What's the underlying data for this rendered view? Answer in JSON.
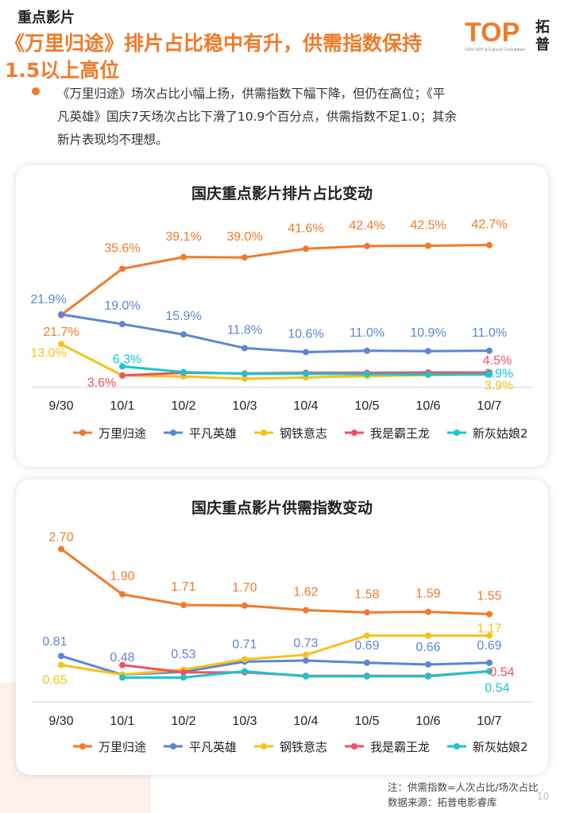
{
  "header": {
    "section": "重点影片",
    "headline": "《万里归途》排片占比稳中有升，供需指数保持1.5以上高位",
    "headline_line1": "《万里归途》排片占比稳中有升，供需指数保持",
    "headline_line2": "1.5以上高位",
    "logo_text": "TOP",
    "logo_cn": [
      "拓",
      "普"
    ],
    "logo_tagline": "CENTURY ● Cultural Consultation",
    "accent_color": "#f07a2a"
  },
  "summary": {
    "text": "《万里归途》场次占比小幅上扬，供需指数下幅下降，但仍在高位；《平凡英雄》国庆7天场次占比下滑了10.9个百分点，供需指数不足1.0；其余新片表现均不理想。",
    "lines": [
      "《万里归途》场次占比小幅上扬，供需指数下幅下降，但仍在高位；《平",
      "凡英雄》国庆7天场次占比下滑了10.9个百分点，供需指数不足1.0；其余",
      "新片表现均不理想。"
    ]
  },
  "chart_data": [
    {
      "type": "line",
      "title": "国庆重点影片排片占比变动",
      "categories": [
        "9/30",
        "10/1",
        "10/2",
        "10/3",
        "10/4",
        "10/5",
        "10/6",
        "10/7"
      ],
      "unit": "%",
      "legend_position": "bottom",
      "series": [
        {
          "name": "万里归途",
          "color": "#f07a2a",
          "values": [
            21.7,
            35.6,
            39.1,
            39.0,
            41.6,
            42.4,
            42.5,
            42.7
          ],
          "labels": [
            "21.7%",
            "35.6%",
            "39.1%",
            "39.0%",
            "41.6%",
            "42.4%",
            "42.5%",
            "42.7%"
          ]
        },
        {
          "name": "平凡英雄",
          "color": "#5b86d6",
          "values": [
            21.9,
            19.0,
            15.9,
            11.8,
            10.6,
            11.0,
            10.9,
            11.0
          ],
          "labels": [
            "21.9%",
            "19.0%",
            "15.9%",
            "11.8%",
            "10.6%",
            "11.0%",
            "10.9%",
            "11.0%"
          ]
        },
        {
          "name": "钢铁意志",
          "color": "#f5c218",
          "values": [
            13.0,
            3.6,
            3.3,
            2.6,
            3.0,
            3.4,
            3.7,
            3.9
          ],
          "labels": [
            "13.0%",
            null,
            null,
            null,
            null,
            null,
            null,
            "3.9%"
          ]
        },
        {
          "name": "我是霸王龙",
          "color": "#ef5160",
          "values": [
            null,
            3.6,
            4.4,
            4.2,
            4.4,
            4.4,
            4.5,
            4.5
          ],
          "labels": [
            null,
            "3.6%",
            null,
            null,
            null,
            null,
            null,
            "4.5%"
          ]
        },
        {
          "name": "新灰姑娘2",
          "color": "#18c4d2",
          "values": [
            null,
            6.3,
            4.6,
            4.1,
            4.1,
            4.0,
            3.9,
            3.9
          ],
          "labels": [
            null,
            "6.3%",
            null,
            null,
            null,
            null,
            null,
            "3.9%"
          ]
        }
      ]
    },
    {
      "type": "line",
      "title": "国庆重点影片供需指数变动",
      "categories": [
        "9/30",
        "10/1",
        "10/2",
        "10/3",
        "10/4",
        "10/5",
        "10/6",
        "10/7"
      ],
      "legend_position": "bottom",
      "series": [
        {
          "name": "万里归途",
          "color": "#f07a2a",
          "values": [
            2.7,
            1.9,
            1.71,
            1.7,
            1.62,
            1.58,
            1.59,
            1.55
          ],
          "labels": [
            "2.70",
            "1.90",
            "1.71",
            "1.70",
            "1.62",
            "1.58",
            "1.59",
            "1.55"
          ]
        },
        {
          "name": "平凡英雄",
          "color": "#5b86d6",
          "values": [
            0.81,
            0.48,
            0.53,
            0.71,
            0.73,
            0.69,
            0.66,
            0.69
          ],
          "labels": [
            "0.81",
            "0.48",
            "0.53",
            "0.71",
            "0.73",
            "0.69",
            "0.66",
            "0.69"
          ]
        },
        {
          "name": "钢铁意志",
          "color": "#f5c218",
          "values": [
            0.65,
            0.48,
            0.57,
            0.75,
            0.83,
            1.17,
            1.17,
            1.17
          ],
          "labels": [
            "0.65",
            null,
            null,
            null,
            null,
            null,
            null,
            "1.17"
          ]
        },
        {
          "name": "我是霸王龙",
          "color": "#ef5160",
          "values": [
            null,
            0.65,
            0.52,
            0.52,
            0.46,
            0.46,
            0.46,
            0.54
          ],
          "labels": [
            null,
            null,
            null,
            null,
            null,
            null,
            null,
            "0.54"
          ]
        },
        {
          "name": "新灰姑娘2",
          "color": "#18c4d2",
          "values": [
            null,
            0.43,
            0.43,
            0.54,
            0.45,
            0.45,
            0.45,
            0.54
          ],
          "labels": [
            null,
            null,
            null,
            null,
            null,
            null,
            null,
            "0.54"
          ]
        }
      ]
    }
  ],
  "footnote": {
    "note": "注：供需指数=人次占比/场次占比",
    "source": "数据来源：拓普电影睿库"
  },
  "page_number": "10"
}
